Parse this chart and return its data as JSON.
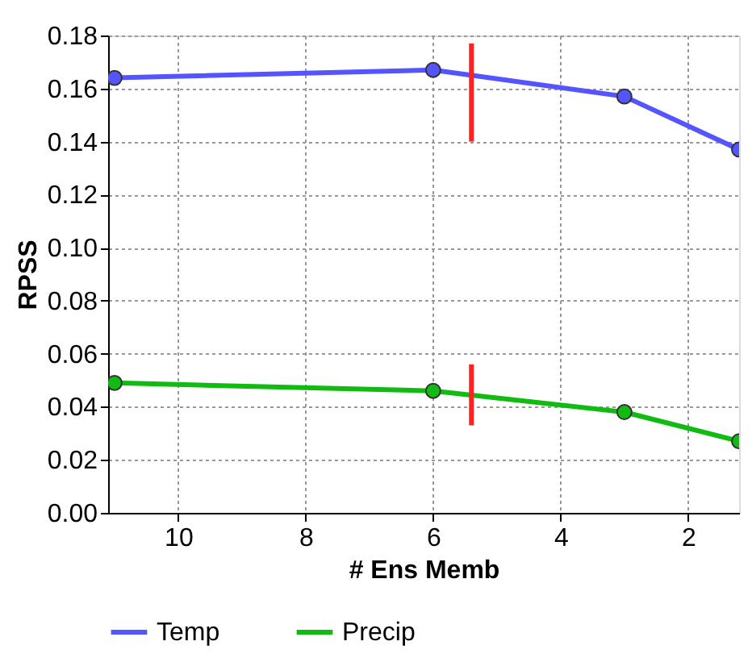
{
  "chart_data": {
    "type": "line",
    "xlabel": "# Ens Memb",
    "ylabel": "RPSS",
    "series": [
      {
        "name": "Temp",
        "color": "#5555ff",
        "x": [
          11,
          6,
          3,
          1.2
        ],
        "values": [
          0.164,
          0.167,
          0.157,
          0.137
        ]
      },
      {
        "name": "Precip",
        "color": "#11bb11",
        "x": [
          11,
          6,
          3,
          1.2
        ],
        "values": [
          0.049,
          0.046,
          0.038,
          0.027
        ]
      },
      {
        "type": "line",
        "color": "#ff2222",
        "marker": "none",
        "x": [
          5.4,
          5.4
        ],
        "values": [
          0.14,
          0.177
        ]
      },
      {
        "type": "line",
        "color": "#ff2222",
        "marker": "none",
        "x": [
          5.4,
          5.4
        ],
        "values": [
          0.033,
          0.056
        ]
      }
    ],
    "xlim": [
      11.1,
      1.2
    ],
    "xticks": [
      10,
      8,
      6,
      4,
      2
    ],
    "ylim": [
      0,
      0.18
    ],
    "yticks": [
      {
        "value": 0,
        "label": "0.00"
      },
      {
        "value": 0.02,
        "label": "0.02"
      },
      {
        "value": 0.04,
        "label": "0.04"
      },
      {
        "value": 0.06,
        "label": "0.06"
      },
      {
        "value": 0.08,
        "label": "0.08"
      },
      {
        "value": 0.1,
        "label": "0.10"
      },
      {
        "value": 0.12,
        "label": "0.12"
      },
      {
        "value": 0.14,
        "label": "0.14"
      },
      {
        "value": 0.16,
        "label": "0.16"
      },
      {
        "value": 0.18,
        "label": "0.18"
      }
    ],
    "grid": true,
    "legend": "bottom",
    "marker": "circle",
    "line_style": "solid"
  }
}
